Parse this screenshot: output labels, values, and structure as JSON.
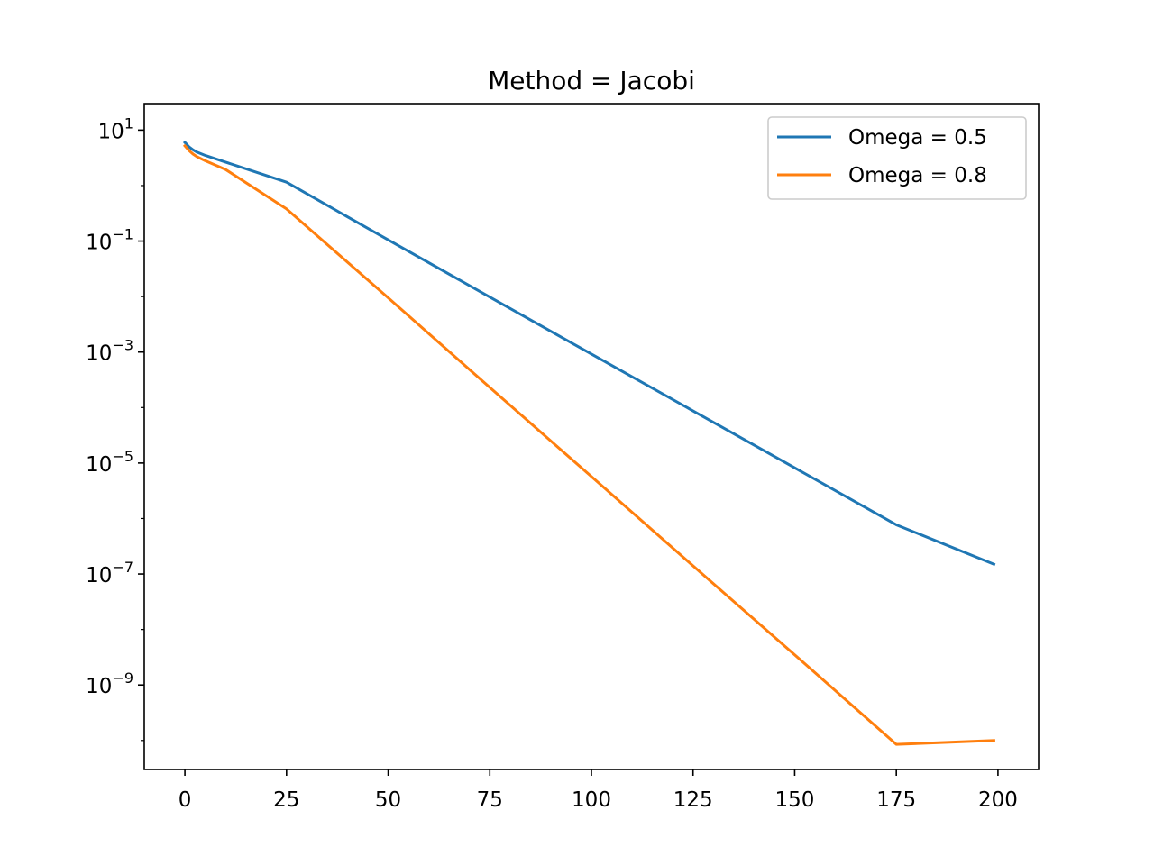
{
  "chart_data": {
    "type": "line",
    "title": "Method = Jacobi",
    "xlabel": "",
    "ylabel": "",
    "xlim": [
      -10,
      210
    ],
    "ylim": [
      3e-11,
      30
    ],
    "yscale": "log",
    "grid": false,
    "legend_position": "top-right",
    "x_ticks": [
      0,
      25,
      50,
      75,
      100,
      125,
      150,
      175,
      200
    ],
    "y_ticks": [
      {
        "base": "10",
        "exp": "1",
        "value": 10
      },
      {
        "base": "10",
        "exp": "−1",
        "value": 0.1
      },
      {
        "base": "10",
        "exp": "−3",
        "value": 0.001
      },
      {
        "base": "10",
        "exp": "−5",
        "value": 1e-05
      },
      {
        "base": "10",
        "exp": "−7",
        "value": 1e-07
      },
      {
        "base": "10",
        "exp": "−9",
        "value": 1e-09
      }
    ],
    "x": [
      0,
      1,
      2,
      3,
      5,
      10,
      25,
      50,
      75,
      100,
      125,
      150,
      175,
      199
    ],
    "series": [
      {
        "name": "Omega = 0.5",
        "color": "#1f77b4",
        "values": [
          6.0,
          5.0,
          4.4,
          4.0,
          3.5,
          2.65,
          1.15,
          0.105,
          0.0098,
          0.00092,
          8.7e-05,
          8.2e-06,
          7.7e-07,
          1.5e-07
        ]
      },
      {
        "name": "Omega = 0.8",
        "color": "#ff7f0e",
        "values": [
          5.2,
          4.3,
          3.7,
          3.3,
          2.8,
          1.95,
          0.38,
          0.0095,
          0.00023,
          5.7e-06,
          1.4e-07,
          3.5e-09,
          8.5e-11,
          1e-10
        ]
      }
    ]
  }
}
